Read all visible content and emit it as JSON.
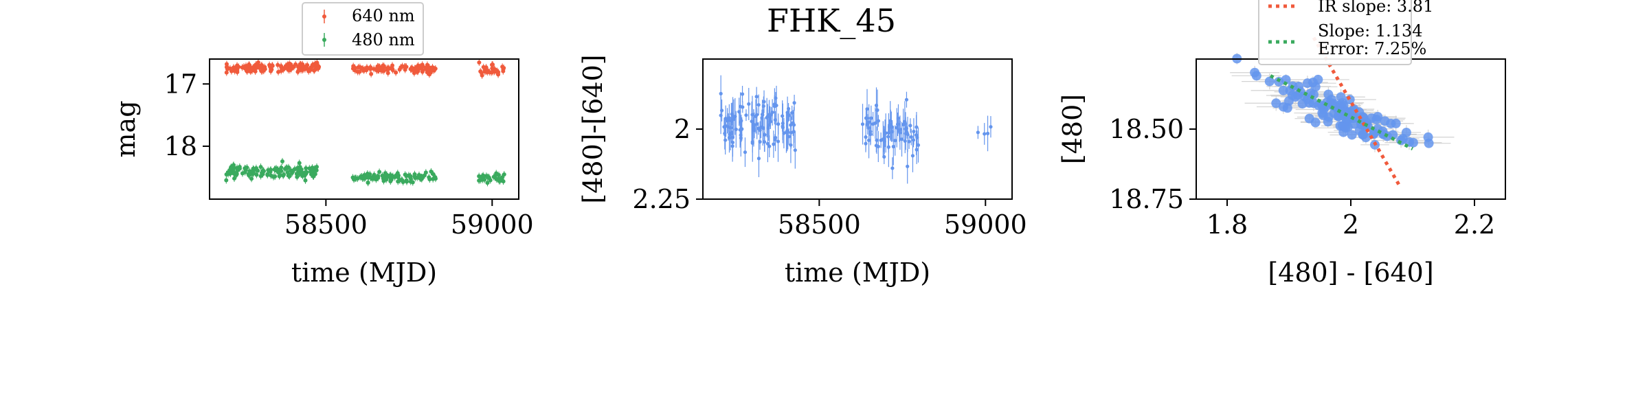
{
  "figure": {
    "title": "FHK_45"
  },
  "colors": {
    "red": "#f05a3c",
    "green": "#3aaa5e",
    "blue": "#6495ed",
    "gray": "#d3d3d3"
  },
  "chart_data": [
    {
      "type": "scatter",
      "panel": "left",
      "title": "",
      "xlabel": "time (MJD)",
      "ylabel": "mag",
      "xlim": [
        58150,
        59080
      ],
      "ylim": [
        18.85,
        16.6
      ],
      "y_inverted": true,
      "xticks": [
        58500,
        59000
      ],
      "yticks": [
        17,
        18
      ],
      "legend": {
        "placement": "top-center",
        "entries": [
          "640 nm",
          "480 nm"
        ]
      },
      "series": [
        {
          "name": "640 nm",
          "color": "#f05a3c",
          "segments": [
            {
              "x": [
                58200,
                58480
              ],
              "y_center": 16.74,
              "y_spread": 0.06,
              "n": 130
            },
            {
              "x": [
                58580,
                58830
              ],
              "y_center": 16.76,
              "y_spread": 0.05,
              "n": 100
            },
            {
              "x": [
                58960,
                59040
              ],
              "y_center": 16.78,
              "y_spread": 0.06,
              "n": 30
            }
          ]
        },
        {
          "name": "480 nm",
          "color": "#3aaa5e",
          "segments": [
            {
              "x": [
                58200,
                58480
              ],
              "y_center": 18.4,
              "y_spread": 0.09,
              "n": 130
            },
            {
              "x": [
                58580,
                58830
              ],
              "y_center": 18.5,
              "y_spread": 0.06,
              "n": 100
            },
            {
              "x": [
                58960,
                59040
              ],
              "y_center": 18.5,
              "y_spread": 0.07,
              "n": 30
            }
          ]
        }
      ]
    },
    {
      "type": "scatter",
      "panel": "middle",
      "title": "FHK_45",
      "xlabel": "time (MJD)",
      "ylabel": "[480]-[640]",
      "xlim": [
        58150,
        59080
      ],
      "ylim": [
        2.25,
        1.75
      ],
      "y_inverted": true,
      "xticks": [
        58500,
        59000
      ],
      "yticks": [
        2.0,
        2.25
      ],
      "series": [
        {
          "name": "",
          "color": "#6495ed",
          "segments": [
            {
              "x": [
                58200,
                58430
              ],
              "y_center": 1.98,
              "y_spread": 0.05,
              "n": 110
            },
            {
              "x": [
                58630,
                58800
              ],
              "y_center": 2.0,
              "y_spread": 0.05,
              "n": 70
            },
            {
              "x": [
                58970,
                59030
              ],
              "y_center": 2.01,
              "y_spread": 0.01,
              "n": 4
            }
          ]
        }
      ]
    },
    {
      "type": "scatter",
      "panel": "right",
      "title": "",
      "xlabel": "[480] - [640]",
      "ylabel": "[480]",
      "xlim": [
        1.75,
        2.25
      ],
      "ylim": [
        18.75,
        18.25
      ],
      "y_inverted": true,
      "xticks": [
        1.8,
        2.0,
        2.2
      ],
      "yticks": [
        18.5,
        18.75
      ],
      "points": {
        "x_center": 1.98,
        "x_spread": 0.06,
        "y_center": 18.44,
        "y_spread": 0.06,
        "n": 120,
        "color": "#6495ed"
      },
      "fit_lines": [
        {
          "label": "IR slope: 3.81",
          "color": "#f05a3c",
          "slope": 3.81,
          "x": [
            1.94,
            2.08
          ]
        },
        {
          "label": "Slope: 1.134",
          "label2": "Error: 7.25%",
          "color": "#3aaa5e",
          "slope": 1.134,
          "x": [
            1.87,
            2.1
          ]
        }
      ],
      "legend": {
        "placement": "top-center"
      }
    }
  ]
}
